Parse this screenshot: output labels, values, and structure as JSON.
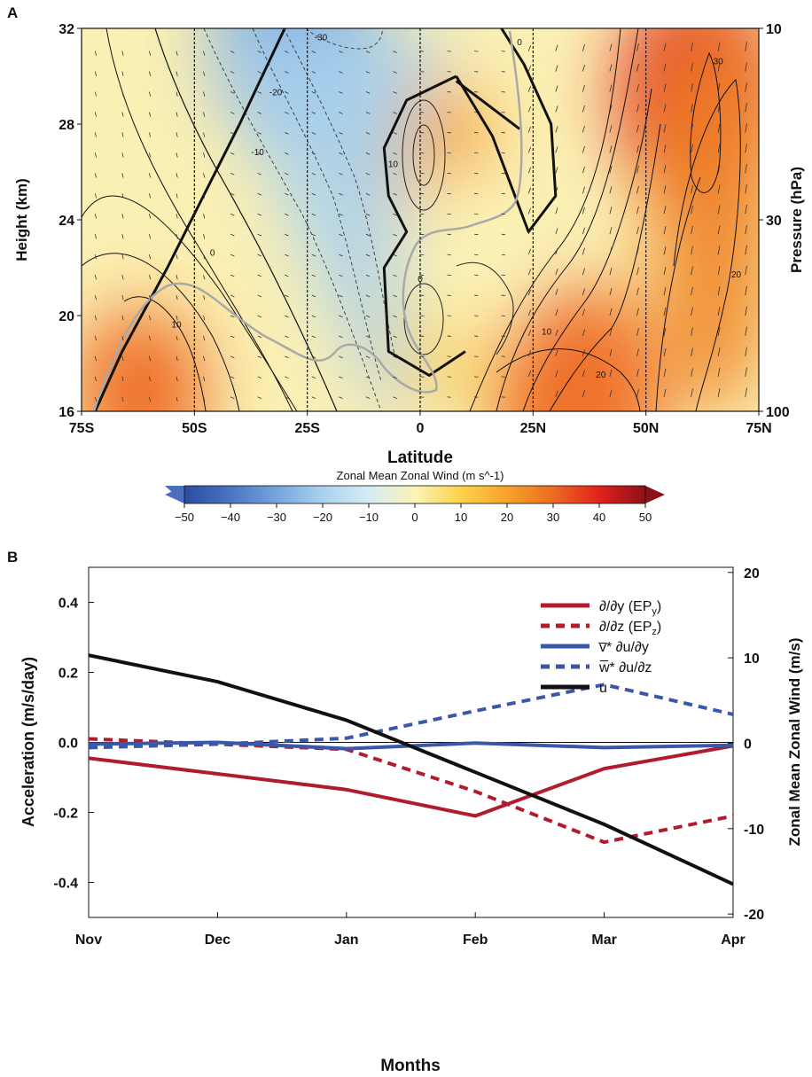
{
  "chart_data": [
    {
      "panel": "A",
      "type": "heatmap",
      "xlabel": "Latitude",
      "ylabel": "Height (km)",
      "ylabel_right": "Pressure (hPa)",
      "xticks": [
        "75S",
        "50S",
        "25S",
        "0",
        "25N",
        "50N",
        "75N"
      ],
      "xtick_values": [
        -75,
        -50,
        -25,
        0,
        25,
        50,
        75
      ],
      "yticks": [
        16,
        20,
        24,
        28,
        32
      ],
      "yticks_right": [
        10,
        30,
        100
      ],
      "yticks_right_heights": [
        32,
        24,
        16
      ],
      "xlim": [
        -75,
        75
      ],
      "ylim": [
        16,
        32
      ],
      "colorbar": {
        "title": "Zonal Mean Zonal Wind (m s^-1)",
        "ticks": [
          -50,
          -40,
          -30,
          -20,
          -10,
          0,
          10,
          20,
          30,
          40,
          50
        ],
        "range": [
          -50,
          50
        ],
        "colors": [
          "#2b4da0",
          "#4a74c4",
          "#75a4dc",
          "#a9d2ee",
          "#d6ecf4",
          "#fbf3b8",
          "#fbd24a",
          "#f6a32a",
          "#ee6a22",
          "#e0221c",
          "#8c1018"
        ]
      },
      "contour_labels": [
        {
          "text": "-30",
          "lat": -22,
          "h": 31.5
        },
        {
          "text": "-20",
          "lat": -32,
          "h": 29.2
        },
        {
          "text": "-10",
          "lat": -36,
          "h": 26.7
        },
        {
          "text": "0",
          "lat": -46,
          "h": 22.5
        },
        {
          "text": "10",
          "lat": -54,
          "h": 19.5
        },
        {
          "text": "10",
          "lat": -6,
          "h": 26.2
        },
        {
          "text": "0",
          "lat": 22,
          "h": 31.3
        },
        {
          "text": "0",
          "lat": 0,
          "h": 21.4
        },
        {
          "text": "10",
          "lat": 28,
          "h": 19.2
        },
        {
          "text": "20",
          "lat": 40,
          "h": 17.4
        },
        {
          "text": "30",
          "lat": 66,
          "h": 30.5
        },
        {
          "text": "20",
          "lat": 70,
          "h": 21.6
        }
      ],
      "jet_centers": [
        {
          "lat": 62,
          "h": 29,
          "u": 40
        },
        {
          "lat": 35,
          "h": 16.5,
          "u": 32
        },
        {
          "lat": -62,
          "h": 16.8,
          "u": 25
        },
        {
          "lat": 2,
          "h": 26.5,
          "u": 18
        },
        {
          "lat": 2,
          "h": 19.8,
          "u": 12
        },
        {
          "lat": -28,
          "h": 31.5,
          "u": -35
        },
        {
          "lat": 10,
          "h": 22.5,
          "u": -3
        }
      ],
      "zero_lines": [
        [
          [
            -30,
            32
          ],
          [
            -40,
            28
          ],
          [
            -48,
            25
          ],
          [
            -56,
            22
          ],
          [
            -66,
            18.5
          ],
          [
            -72,
            16
          ]
        ],
        [
          [
            8,
            30
          ],
          [
            -3,
            29
          ],
          [
            -8,
            27
          ],
          [
            -7,
            25
          ],
          [
            -3,
            23.5
          ],
          [
            -8,
            22
          ],
          [
            -7,
            18.5
          ],
          [
            2,
            17.5
          ],
          [
            10,
            18.5
          ]
        ],
        [
          [
            8,
            30
          ],
          [
            16,
            27.5
          ],
          [
            24,
            23.5
          ],
          [
            30,
            25
          ],
          [
            29,
            28
          ],
          [
            23,
            30.5
          ],
          [
            18,
            32
          ]
        ],
        [
          [
            8,
            29.8
          ],
          [
            22,
            27.8
          ]
        ]
      ]
    },
    {
      "panel": "B",
      "type": "line",
      "xlabel": "Months",
      "ylabel": "Acceleration (m/s/day)",
      "ylabel_right": "Zonal Mean Zonal Wind (m/s)",
      "categories": [
        "Nov",
        "Dec",
        "Jan",
        "Feb",
        "Mar",
        "Apr"
      ],
      "ylim": [
        -0.5,
        0.5
      ],
      "yticks": [
        0.4,
        0.2,
        0.0,
        -0.2,
        -0.4
      ],
      "ytick_labels": [
        "0.4",
        "0.2",
        "0.0",
        "-0.2",
        "-0.4"
      ],
      "ylim_right": [
        -20.4,
        20.6
      ],
      "yticks_right": [
        20,
        10,
        0,
        -10,
        -20
      ],
      "legend_position": "top-right",
      "series": [
        {
          "name": "∂/∂y (EP",
          "name_sub": "y",
          "name_end": ")",
          "color": "#b01c2e",
          "dash": false,
          "axis": "left",
          "values": [
            -0.045,
            -0.09,
            -0.135,
            -0.21,
            -0.075,
            -0.01
          ]
        },
        {
          "name": "∂/∂z (EP",
          "name_sub": "z",
          "name_end": ")",
          "color": "#b01c2e",
          "dash": true,
          "axis": "left",
          "values": [
            0.01,
            -0.005,
            -0.02,
            -0.14,
            -0.285,
            -0.21
          ]
        },
        {
          "name": "v̅* ∂u/∂y",
          "name_sub": "",
          "name_end": "",
          "color": "#3a57aa",
          "dash": false,
          "axis": "left",
          "values": [
            -0.005,
            0.0,
            -0.018,
            -0.002,
            -0.015,
            -0.008
          ]
        },
        {
          "name": "w̅* ∂u/∂z",
          "name_sub": "",
          "name_end": "",
          "color": "#3a57aa",
          "dash": true,
          "axis": "left",
          "values": [
            -0.015,
            -0.005,
            0.012,
            0.09,
            0.165,
            0.08
          ]
        },
        {
          "name": "u",
          "name_sub": "",
          "name_end": "",
          "color": "#111111",
          "dash": false,
          "axis": "right",
          "values": [
            10.3,
            7.2,
            2.7,
            -3.4,
            -9.5,
            -16.5
          ]
        }
      ]
    }
  ]
}
